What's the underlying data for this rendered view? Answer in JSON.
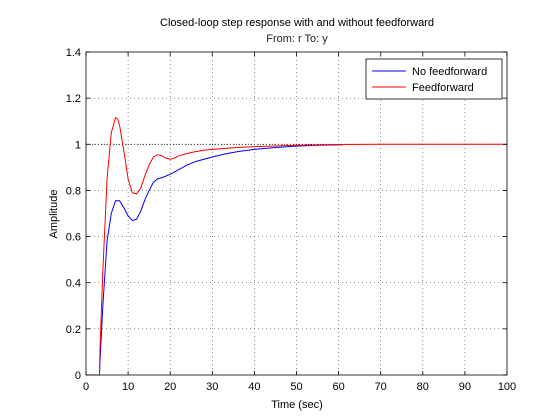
{
  "chart_data": {
    "type": "line",
    "title": "Closed-loop step response with and without feedforward",
    "subtitle": "From: r  To: y",
    "xlabel": "Time (sec)",
    "ylabel": "Amplitude",
    "xlim": [
      0,
      100
    ],
    "ylim": [
      0,
      1.4
    ],
    "xticks": [
      0,
      10,
      20,
      30,
      40,
      50,
      60,
      70,
      80,
      90,
      100
    ],
    "yticks": [
      0,
      0.2,
      0.4,
      0.6,
      0.8,
      1,
      1.2,
      1.4
    ],
    "xtick_labels": [
      "0",
      "10",
      "20",
      "30",
      "40",
      "50",
      "60",
      "70",
      "80",
      "90",
      "100"
    ],
    "ytick_labels": [
      "0",
      "0.2",
      "0.4",
      "0.6",
      "0.8",
      "1",
      "1.2",
      "1.4"
    ],
    "grid": true,
    "legend_position": "top-right",
    "reference_line": {
      "y": 1
    },
    "colors": {
      "axes": "#000000",
      "grid": "#444444",
      "reference": "#000000"
    },
    "series": [
      {
        "name": "No feedforward",
        "color": "#0000ff",
        "x": [
          0,
          3.2,
          3.3,
          4,
          5,
          6,
          7,
          8,
          9,
          10,
          11,
          12,
          13,
          14,
          15,
          16,
          17,
          18,
          20,
          22,
          24,
          26,
          28,
          30,
          33,
          36,
          40,
          45,
          50,
          55,
          61
        ],
        "y": [
          0,
          0,
          0.05,
          0.3,
          0.58,
          0.7,
          0.755,
          0.755,
          0.725,
          0.69,
          0.67,
          0.675,
          0.71,
          0.76,
          0.8,
          0.835,
          0.85,
          0.855,
          0.87,
          0.89,
          0.91,
          0.925,
          0.935,
          0.945,
          0.958,
          0.968,
          0.978,
          0.986,
          0.992,
          0.996,
          0.998
        ]
      },
      {
        "name": "Feedforward",
        "color": "#ff0000",
        "x": [
          0,
          3.2,
          3.3,
          4,
          5,
          6,
          7,
          7.5,
          8,
          9,
          10,
          11,
          12,
          13,
          14,
          15,
          16,
          17,
          18,
          19,
          20,
          21,
          22,
          24,
          26,
          28,
          30,
          35,
          40,
          50,
          60,
          70,
          80,
          90,
          100
        ],
        "y": [
          0,
          0,
          0.1,
          0.45,
          0.85,
          1.05,
          1.115,
          1.11,
          1.08,
          0.97,
          0.85,
          0.79,
          0.785,
          0.81,
          0.865,
          0.91,
          0.945,
          0.955,
          0.95,
          0.94,
          0.935,
          0.94,
          0.95,
          0.96,
          0.968,
          0.974,
          0.978,
          0.985,
          0.99,
          0.996,
          0.999,
          1,
          1,
          1,
          1
        ]
      }
    ]
  }
}
